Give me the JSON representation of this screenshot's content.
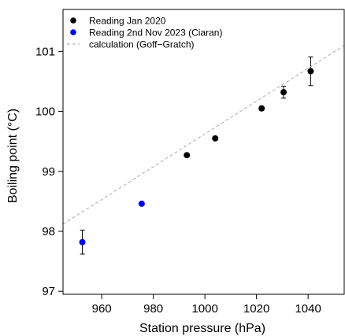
{
  "chart_data": {
    "type": "scatter",
    "xlabel": "Station pressure (hPa)",
    "ylabel": "Boiling point (°C)",
    "xlim": [
      945,
      1054
    ],
    "ylim": [
      96.95,
      101.7
    ],
    "x_ticks": [
      960,
      980,
      1000,
      1020,
      1040
    ],
    "y_ticks": [
      97,
      98,
      99,
      100,
      101
    ],
    "x_tick_labels": [
      "960",
      "980",
      "1000",
      "1020",
      "1040"
    ],
    "y_tick_labels": [
      "97",
      "98",
      "99",
      "100",
      "101"
    ],
    "grid": false,
    "legend_position": "top-left",
    "series": [
      {
        "name": "Reading Jan 2020",
        "color": "#000000",
        "marker": "circle",
        "points": [
          {
            "x": 993,
            "y": 99.27
          },
          {
            "x": 1004,
            "y": 99.55
          },
          {
            "x": 1022,
            "y": 100.05
          },
          {
            "x": 1030.5,
            "y": 100.32,
            "err": 0.1
          },
          {
            "x": 1041,
            "y": 100.67,
            "err": 0.24
          }
        ]
      },
      {
        "name": "Reading 2nd Nov 2023 (Ciaran)",
        "color": "#0000ff",
        "marker": "circle",
        "points": [
          {
            "x": 952.5,
            "y": 97.82,
            "err": 0.2
          },
          {
            "x": 975.5,
            "y": 98.46
          }
        ]
      },
      {
        "name": "calculation (Goff−Gratch)",
        "color": "#aaaaaa",
        "style": "dashed-line",
        "points": [
          {
            "x": 945,
            "y": 98.12
          },
          {
            "x": 1054,
            "y": 101.1
          }
        ]
      }
    ]
  }
}
